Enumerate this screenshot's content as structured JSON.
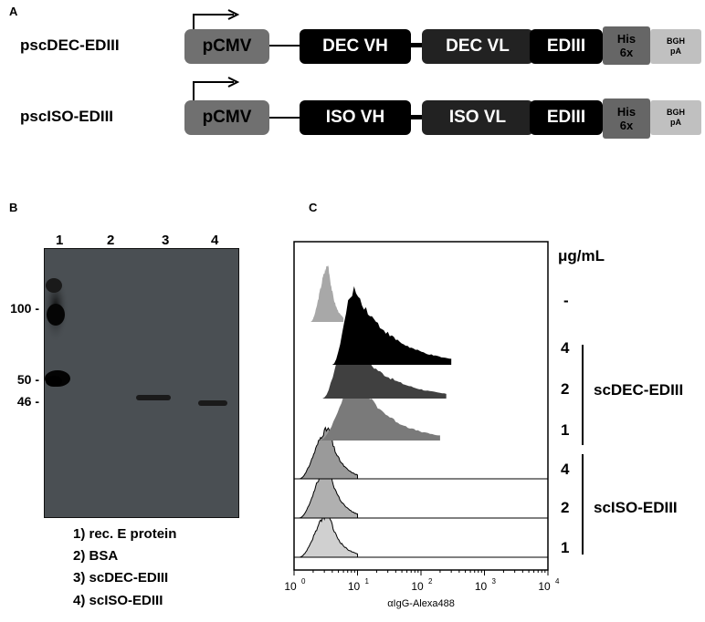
{
  "panel_labels": {
    "a": "A",
    "b": "B",
    "c": "C"
  },
  "constructs": [
    {
      "name": "pscDEC-EDIII",
      "segments": [
        "pCMV",
        "DEC VH",
        "DEC VL",
        "EDIII",
        "His",
        "6x",
        "BGH",
        "pA"
      ]
    },
    {
      "name": "pscISO-EDIII",
      "segments": [
        "pCMV",
        "ISO VH",
        "ISO VL",
        "EDIII",
        "His",
        "6x",
        "BGH",
        "pA"
      ]
    }
  ],
  "western_blot": {
    "lane_numbers": [
      "1",
      "2",
      "3",
      "4"
    ],
    "mw_markers": [
      "100 -",
      "50 -",
      "46 -"
    ],
    "legend": [
      "1) rec. E protein",
      "2) BSA",
      "3) scDEC-EDIII",
      "4) scISO-EDIII"
    ]
  },
  "chart_data": {
    "type": "area",
    "title": "",
    "xlabel": "αIgG-Alexa488",
    "ylabel": "",
    "xscale": "log",
    "xlim": [
      1,
      10000
    ],
    "xticks": [
      "10",
      "10",
      "10",
      "10",
      "10"
    ],
    "xtick_exps": [
      "0",
      "1",
      "2",
      "3",
      "4"
    ],
    "right_header": "μg/mL",
    "concentration_labels": [
      "-",
      "4",
      "2",
      "1",
      "4",
      "2",
      "1"
    ],
    "groups": [
      {
        "label": "scDEC-EDIII",
        "concentrations": [
          "4",
          "2",
          "1"
        ]
      },
      {
        "label": "scISO-EDIII",
        "concentrations": [
          "4",
          "2",
          "1"
        ]
      }
    ],
    "histograms": [
      {
        "row": "-",
        "fill": "#a8a8a8",
        "peak_x": 3.5,
        "range": [
          1.8,
          6
        ]
      },
      {
        "row": "scDEC-EDIII 4",
        "fill": "#000000",
        "peak_x": 9,
        "range": [
          4,
          300
        ]
      },
      {
        "row": "scDEC-EDIII 2",
        "fill": "#404040",
        "peak_x": 7,
        "range": [
          2.8,
          250
        ]
      },
      {
        "row": "scDEC-EDIII 1",
        "fill": "#7a7a7a",
        "peak_x": 10,
        "range": [
          2.5,
          200
        ]
      },
      {
        "row": "scISO-EDIII 4",
        "fill": "#9a9a9a",
        "peak_x": 3.5,
        "range": [
          1.2,
          10
        ]
      },
      {
        "row": "scISO-EDIII 2",
        "fill": "#b0b0b0",
        "peak_x": 3.5,
        "range": [
          1.2,
          10
        ]
      },
      {
        "row": "scISO-EDIII 1",
        "fill": "#d0d0d0",
        "peak_x": 3.5,
        "range": [
          1.2,
          10
        ]
      }
    ]
  }
}
